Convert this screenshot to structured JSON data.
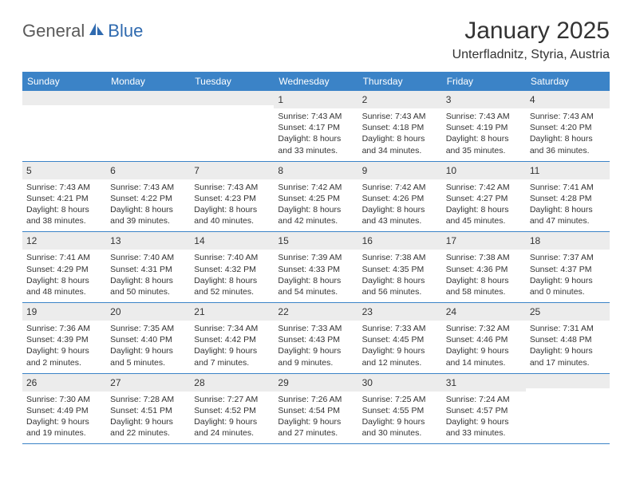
{
  "logo": {
    "part1": "General",
    "part2": "Blue"
  },
  "title": "January 2025",
  "location": "Unterfladnitz, Styria, Austria",
  "header_bg": "#3b83c7",
  "weekdays": [
    "Sunday",
    "Monday",
    "Tuesday",
    "Wednesday",
    "Thursday",
    "Friday",
    "Saturday"
  ],
  "weeks": [
    [
      null,
      null,
      null,
      {
        "n": "1",
        "sr": "7:43 AM",
        "ss": "4:17 PM",
        "dl": "8 hours and 33 minutes."
      },
      {
        "n": "2",
        "sr": "7:43 AM",
        "ss": "4:18 PM",
        "dl": "8 hours and 34 minutes."
      },
      {
        "n": "3",
        "sr": "7:43 AM",
        "ss": "4:19 PM",
        "dl": "8 hours and 35 minutes."
      },
      {
        "n": "4",
        "sr": "7:43 AM",
        "ss": "4:20 PM",
        "dl": "8 hours and 36 minutes."
      }
    ],
    [
      {
        "n": "5",
        "sr": "7:43 AM",
        "ss": "4:21 PM",
        "dl": "8 hours and 38 minutes."
      },
      {
        "n": "6",
        "sr": "7:43 AM",
        "ss": "4:22 PM",
        "dl": "8 hours and 39 minutes."
      },
      {
        "n": "7",
        "sr": "7:43 AM",
        "ss": "4:23 PM",
        "dl": "8 hours and 40 minutes."
      },
      {
        "n": "8",
        "sr": "7:42 AM",
        "ss": "4:25 PM",
        "dl": "8 hours and 42 minutes."
      },
      {
        "n": "9",
        "sr": "7:42 AM",
        "ss": "4:26 PM",
        "dl": "8 hours and 43 minutes."
      },
      {
        "n": "10",
        "sr": "7:42 AM",
        "ss": "4:27 PM",
        "dl": "8 hours and 45 minutes."
      },
      {
        "n": "11",
        "sr": "7:41 AM",
        "ss": "4:28 PM",
        "dl": "8 hours and 47 minutes."
      }
    ],
    [
      {
        "n": "12",
        "sr": "7:41 AM",
        "ss": "4:29 PM",
        "dl": "8 hours and 48 minutes."
      },
      {
        "n": "13",
        "sr": "7:40 AM",
        "ss": "4:31 PM",
        "dl": "8 hours and 50 minutes."
      },
      {
        "n": "14",
        "sr": "7:40 AM",
        "ss": "4:32 PM",
        "dl": "8 hours and 52 minutes."
      },
      {
        "n": "15",
        "sr": "7:39 AM",
        "ss": "4:33 PM",
        "dl": "8 hours and 54 minutes."
      },
      {
        "n": "16",
        "sr": "7:38 AM",
        "ss": "4:35 PM",
        "dl": "8 hours and 56 minutes."
      },
      {
        "n": "17",
        "sr": "7:38 AM",
        "ss": "4:36 PM",
        "dl": "8 hours and 58 minutes."
      },
      {
        "n": "18",
        "sr": "7:37 AM",
        "ss": "4:37 PM",
        "dl": "9 hours and 0 minutes."
      }
    ],
    [
      {
        "n": "19",
        "sr": "7:36 AM",
        "ss": "4:39 PM",
        "dl": "9 hours and 2 minutes."
      },
      {
        "n": "20",
        "sr": "7:35 AM",
        "ss": "4:40 PM",
        "dl": "9 hours and 5 minutes."
      },
      {
        "n": "21",
        "sr": "7:34 AM",
        "ss": "4:42 PM",
        "dl": "9 hours and 7 minutes."
      },
      {
        "n": "22",
        "sr": "7:33 AM",
        "ss": "4:43 PM",
        "dl": "9 hours and 9 minutes."
      },
      {
        "n": "23",
        "sr": "7:33 AM",
        "ss": "4:45 PM",
        "dl": "9 hours and 12 minutes."
      },
      {
        "n": "24",
        "sr": "7:32 AM",
        "ss": "4:46 PM",
        "dl": "9 hours and 14 minutes."
      },
      {
        "n": "25",
        "sr": "7:31 AM",
        "ss": "4:48 PM",
        "dl": "9 hours and 17 minutes."
      }
    ],
    [
      {
        "n": "26",
        "sr": "7:30 AM",
        "ss": "4:49 PM",
        "dl": "9 hours and 19 minutes."
      },
      {
        "n": "27",
        "sr": "7:28 AM",
        "ss": "4:51 PM",
        "dl": "9 hours and 22 minutes."
      },
      {
        "n": "28",
        "sr": "7:27 AM",
        "ss": "4:52 PM",
        "dl": "9 hours and 24 minutes."
      },
      {
        "n": "29",
        "sr": "7:26 AM",
        "ss": "4:54 PM",
        "dl": "9 hours and 27 minutes."
      },
      {
        "n": "30",
        "sr": "7:25 AM",
        "ss": "4:55 PM",
        "dl": "9 hours and 30 minutes."
      },
      {
        "n": "31",
        "sr": "7:24 AM",
        "ss": "4:57 PM",
        "dl": "9 hours and 33 minutes."
      },
      null
    ]
  ],
  "labels": {
    "sunrise": "Sunrise: ",
    "sunset": "Sunset: ",
    "daylight": "Daylight: "
  },
  "style": {
    "day_num_bg": "#ececec",
    "row_border": "#3b83c7",
    "text_color": "#333333",
    "day_info_fontsize": 10.5,
    "day_num_fontsize": 12,
    "weekday_fontsize": 12
  }
}
